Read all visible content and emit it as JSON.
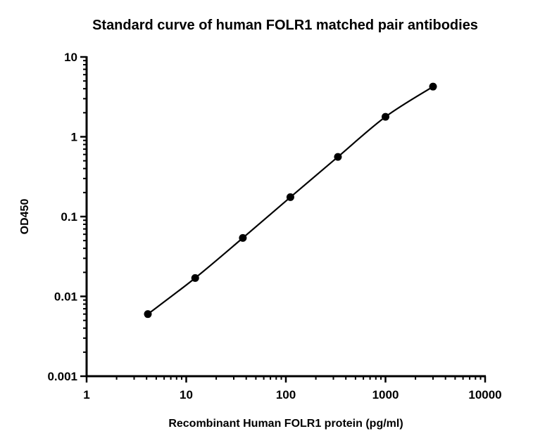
{
  "chart_data": {
    "type": "scatter",
    "title": "Standard curve of human FOLR1 matched pair antibodies",
    "xlabel": "Recombinant Human FOLR1 protein (pg/ml)",
    "ylabel": "OD450",
    "xscale": "log",
    "yscale": "log",
    "xlim": [
      1,
      10000
    ],
    "ylim": [
      0.001,
      10
    ],
    "x_ticks": [
      "1",
      "10",
      "100",
      "1000",
      "10000"
    ],
    "y_ticks": [
      "0.001",
      "0.01",
      "0.1",
      "1",
      "10"
    ],
    "grid": false,
    "legend": "none",
    "series": [
      {
        "x": [
          4.12,
          12.3,
          37,
          111,
          333,
          1000,
          3000
        ],
        "y": [
          0.006,
          0.017,
          0.054,
          0.175,
          0.56,
          1.78,
          4.25
        ],
        "marker": "filled-circle",
        "fit_curve": true
      }
    ],
    "colors": {
      "marks": "#000000",
      "axes": "#000000"
    }
  }
}
